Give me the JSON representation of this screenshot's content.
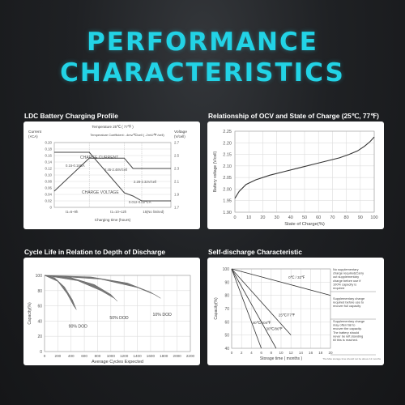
{
  "header": {
    "line1": "PERFORMANCE",
    "line2": "CHARACTERISTICS"
  },
  "colors": {
    "accent": "#22d3e6",
    "background": "#1f2124",
    "panel": "#ffffff",
    "lines": "#444444",
    "shade": "#777777"
  },
  "chart_data": [
    {
      "type": "line",
      "title": "LDC Battery Charging Profile",
      "top_note": "Temperature 25℃ ( 77℉ )",
      "coeff_note": "Temperature Coefficient: -4mv/℃/cell ( -2mV/℉ /cell)",
      "left_axis_title": "Current",
      "left_axis_unit": "(×CA)",
      "left_ticks": [
        "0.20",
        "0.18",
        "0.16",
        "0.14",
        "0.12",
        "0.10",
        "0.08",
        "0.06",
        "0.04",
        "0.02",
        "0"
      ],
      "right_axis_title": "Voltage",
      "right_axis_unit": "(V/cell)",
      "right_ticks": [
        "2.7",
        "2.5",
        "2.3",
        "2.1",
        "1.9",
        "1.7"
      ],
      "xlabel": "Charging time (hours)",
      "x_ticks": [
        "t1=6~9h",
        "t1=10~12h",
        "15(No limited)"
      ],
      "annotations": [
        "CHARGE CURRENT",
        "0.15-0.18CA",
        "2.45-2.48V/cell",
        "2.28-2.32V/cell",
        "CHARGE VOLTAGE",
        "0.012-0.02℃A"
      ],
      "series": [
        {
          "name": "CHARGE CURRENT",
          "x": [
            0,
            6,
            12,
            13.5,
            15,
            20
          ],
          "y": [
            0.17,
            0.17,
            0.045,
            0.035,
            0.02,
            0.02
          ]
        },
        {
          "name": "CHARGE VOLTAGE",
          "x": [
            0,
            6,
            12,
            13.5,
            20
          ],
          "y": [
            1.95,
            2.46,
            2.46,
            2.3,
            2.3
          ]
        }
      ]
    },
    {
      "type": "line",
      "title": "Relationship of OCV and State of Charge (25℃, 77℉)",
      "xlabel": "State of Charge(%)",
      "ylabel": "Battery voltage (V/cell)",
      "xlim": [
        0,
        100
      ],
      "ylim": [
        1.9,
        2.25
      ],
      "x_ticks": [
        0,
        10,
        20,
        30,
        40,
        50,
        60,
        70,
        80,
        90,
        100
      ],
      "y_ticks": [
        "1.90",
        "1.95",
        "2.00",
        "2.05",
        "2.10",
        "2.15",
        "2.20",
        "2.25"
      ],
      "grid": true,
      "series": [
        {
          "x": [
            0,
            3,
            8,
            15,
            25,
            35,
            45,
            55,
            65,
            75,
            82,
            88,
            93,
            97,
            100
          ],
          "y": [
            1.96,
            1.99,
            2.02,
            2.04,
            2.06,
            2.075,
            2.09,
            2.105,
            2.12,
            2.135,
            2.15,
            2.165,
            2.185,
            2.205,
            2.225
          ]
        }
      ]
    },
    {
      "type": "area",
      "title": "Cycle Life in Relation to Depth of Discharge",
      "xlabel": "Average Cycles Expected",
      "ylabel": "Capacity(%)",
      "xlim": [
        0,
        2200
      ],
      "ylim": [
        0,
        100
      ],
      "x_ticks": [
        0,
        200,
        400,
        600,
        800,
        1000,
        1200,
        1400,
        1600,
        1800,
        2000,
        2200
      ],
      "y_ticks": [
        0,
        20,
        40,
        60,
        80,
        100
      ],
      "grid": true,
      "bands": [
        {
          "name": "90% DOD",
          "outer": [
            [
              0,
              100
            ],
            [
              150,
              97
            ],
            [
              300,
              85
            ],
            [
              420,
              68
            ],
            [
              480,
              55
            ]
          ],
          "inner": [
            [
              0,
              100
            ],
            [
              200,
              92
            ],
            [
              340,
              76
            ],
            [
              440,
              60
            ],
            [
              480,
              55
            ]
          ]
        },
        {
          "name": "50% DOD",
          "outer": [
            [
              0,
              100
            ],
            [
              400,
              97
            ],
            [
              750,
              88
            ],
            [
              1000,
              75
            ],
            [
              1100,
              66
            ]
          ],
          "inner": [
            [
              0,
              100
            ],
            [
              500,
              93
            ],
            [
              850,
              80
            ],
            [
              1050,
              70
            ],
            [
              1100,
              66
            ]
          ]
        },
        {
          "name": "10% DOD",
          "outer": [
            [
              0,
              100
            ],
            [
              700,
              98
            ],
            [
              1250,
              90
            ],
            [
              1600,
              78
            ],
            [
              1750,
              70
            ]
          ],
          "inner": [
            [
              0,
              100
            ],
            [
              850,
              95
            ],
            [
              1400,
              84
            ],
            [
              1680,
              74
            ],
            [
              1750,
              70
            ]
          ]
        }
      ]
    },
    {
      "type": "line",
      "title": "Self-discharge Characteristic",
      "xlabel": "Storage time ( months )",
      "ylabel": "Capacity(%)",
      "footnote": "The Max storage time should not be above 12 months",
      "xlim": [
        0,
        20
      ],
      "ylim": [
        40,
        100
      ],
      "x_ticks": [
        0,
        2,
        4,
        6,
        8,
        10,
        12,
        14,
        16,
        18,
        20
      ],
      "y_ticks": [
        40,
        50,
        60,
        70,
        80,
        90,
        100
      ],
      "grid": true,
      "notes": [
        "No supplementary charge required(Carry out supplementary charge before use if 100% capacity is required",
        "Supplementary charge required before use to recover full capacity",
        "Supplementary charge may often fail to recover the capacity. The battery should never be left standing till this is reached."
      ],
      "series": [
        {
          "name": "0℃ / 32℉",
          "x": [
            0,
            20
          ],
          "y": [
            100,
            80
          ]
        },
        {
          "name": "25℃/77℉",
          "x": [
            0,
            12
          ],
          "y": [
            100,
            50
          ]
        },
        {
          "name": "30℃/86℉",
          "x": [
            0,
            9
          ],
          "y": [
            100,
            40
          ]
        },
        {
          "name": "40℃/104℉",
          "x": [
            0,
            6
          ],
          "y": [
            100,
            40
          ]
        }
      ]
    }
  ]
}
